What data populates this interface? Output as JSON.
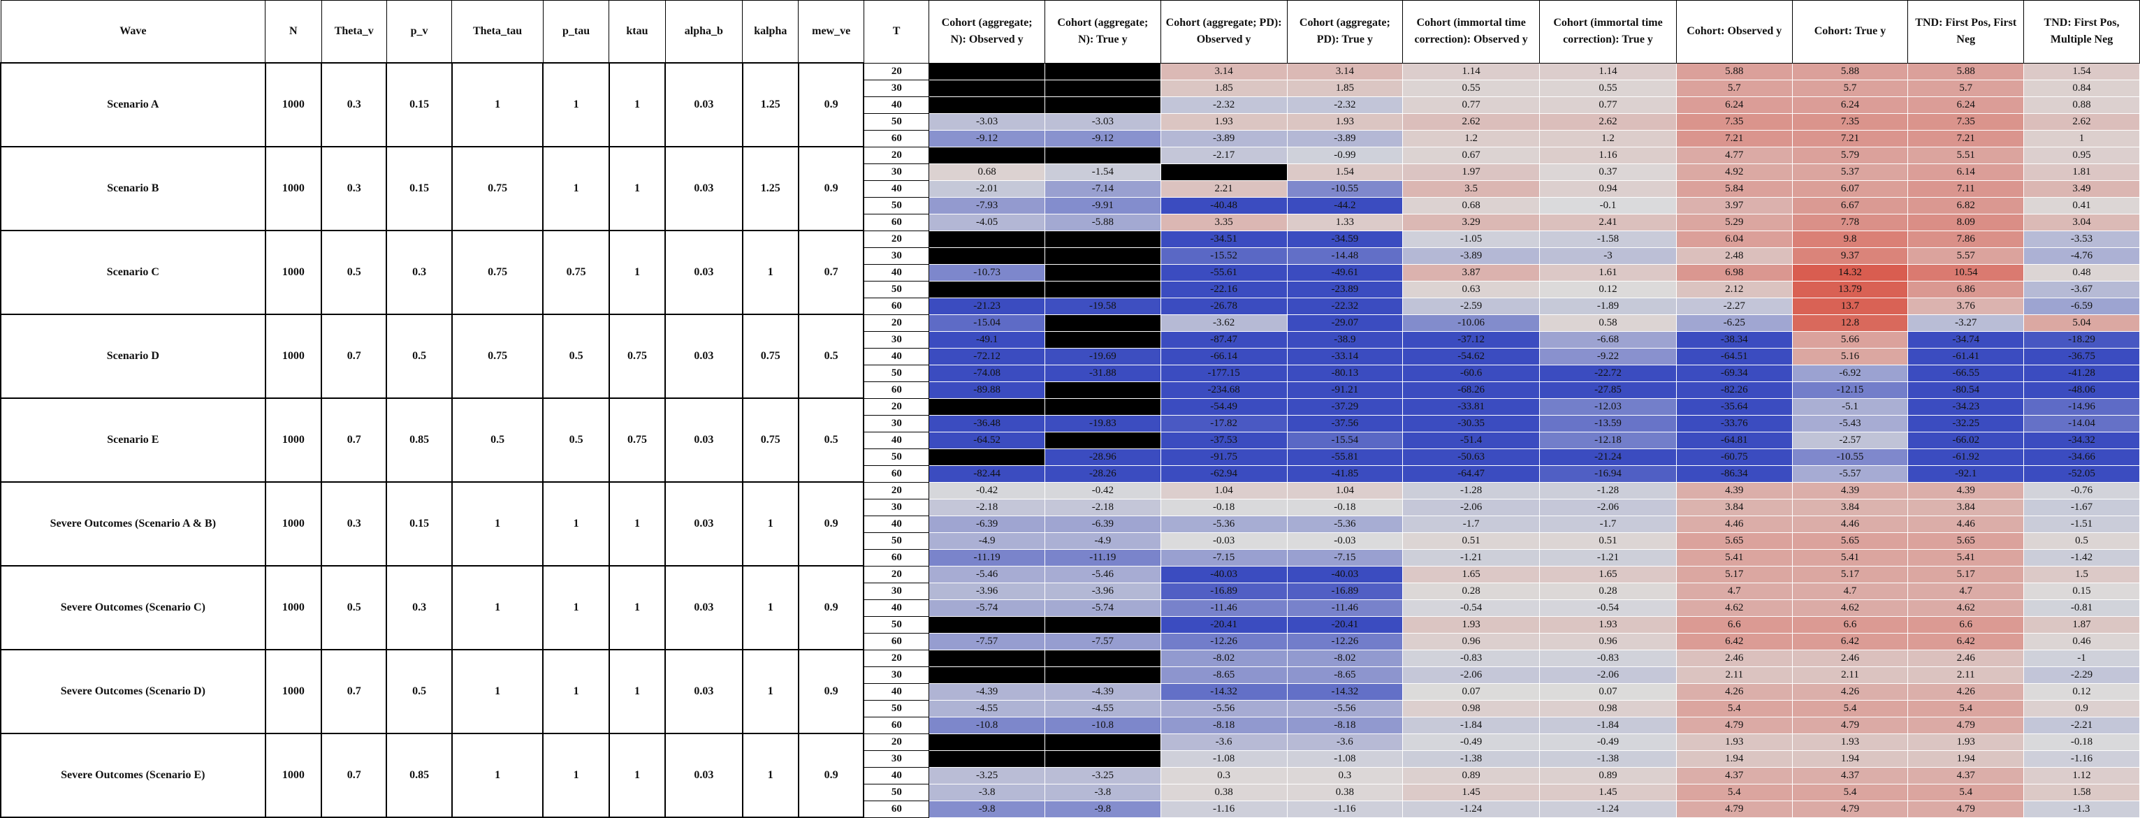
{
  "headers": [
    "Wave",
    "N",
    "Theta_v",
    "p_v",
    "Theta_tau",
    "p_tau",
    "ktau",
    "alpha_b",
    "kalpha",
    "mew_ve",
    "T",
    "Cohort (aggregate; N): Observed y",
    "Cohort (aggregate; N): True y",
    "Cohort (aggregate; PD): Observed y",
    "Cohort (aggregate; PD): True y",
    "Cohort (immortal time correction): Observed y",
    "Cohort (immortal time correction): True y",
    "Cohort: Observed y",
    "Cohort: True y",
    "TND: First Pos, First Neg",
    "TND: First Pos, Multiple Neg"
  ],
  "colors": {
    "cold": "#3b4cc0",
    "neutral": "#dcdcdc",
    "warm": "#d9584a",
    "missing": "#000000"
  },
  "groups": [
    {
      "wave": "Scenario A",
      "params": [
        "1000",
        "0.3",
        "0.15",
        "1",
        "1",
        "1",
        "0.03",
        "1.25",
        "0.9"
      ],
      "rows": [
        {
          "T": "20",
          "v": [
            null,
            null,
            "3.14",
            "3.14",
            "1.14",
            "1.14",
            "5.88",
            "5.88",
            "5.88",
            "1.54"
          ]
        },
        {
          "T": "30",
          "v": [
            null,
            null,
            "1.85",
            "1.85",
            "0.55",
            "0.55",
            "5.7",
            "5.7",
            "5.7",
            "0.84"
          ]
        },
        {
          "T": "40",
          "v": [
            null,
            null,
            "-2.32",
            "-2.32",
            "0.77",
            "0.77",
            "6.24",
            "6.24",
            "6.24",
            "0.88"
          ]
        },
        {
          "T": "50",
          "v": [
            "-3.03",
            "-3.03",
            "1.93",
            "1.93",
            "2.62",
            "2.62",
            "7.35",
            "7.35",
            "7.35",
            "2.62"
          ]
        },
        {
          "T": "60",
          "v": [
            "-9.12",
            "-9.12",
            "-3.89",
            "-3.89",
            "1.2",
            "1.2",
            "7.21",
            "7.21",
            "7.21",
            "1"
          ]
        }
      ]
    },
    {
      "wave": "Scenario B",
      "params": [
        "1000",
        "0.3",
        "0.15",
        "0.75",
        "1",
        "1",
        "0.03",
        "1.25",
        "0.9"
      ],
      "rows": [
        {
          "T": "20",
          "v": [
            null,
            null,
            "-2.17",
            "-0.99",
            "0.67",
            "1.16",
            "4.77",
            "5.79",
            "5.51",
            "0.95"
          ]
        },
        {
          "T": "30",
          "v": [
            "0.68",
            "-1.54",
            null,
            "1.54",
            "1.97",
            "0.37",
            "4.92",
            "5.37",
            "6.14",
            "1.81"
          ]
        },
        {
          "T": "40",
          "v": [
            "-2.01",
            "-7.14",
            "2.21",
            "-10.55",
            "3.5",
            "0.94",
            "5.84",
            "6.07",
            "7.11",
            "3.49"
          ]
        },
        {
          "T": "50",
          "v": [
            "-7.93",
            "-9.91",
            "-40.48",
            "-44.2",
            "0.68",
            "-0.1",
            "3.97",
            "6.67",
            "6.82",
            "0.41"
          ]
        },
        {
          "T": "60",
          "v": [
            "-4.05",
            "-5.88",
            "3.35",
            "1.33",
            "3.29",
            "2.41",
            "5.29",
            "7.78",
            "8.09",
            "3.04"
          ]
        }
      ]
    },
    {
      "wave": "Scenario C",
      "params": [
        "1000",
        "0.5",
        "0.3",
        "0.75",
        "0.75",
        "1",
        "0.03",
        "1",
        "0.7"
      ],
      "rows": [
        {
          "T": "20",
          "v": [
            null,
            null,
            "-34.51",
            "-34.59",
            "-1.05",
            "-1.58",
            "6.04",
            "9.8",
            "7.86",
            "-3.53"
          ]
        },
        {
          "T": "30",
          "v": [
            null,
            null,
            "-15.52",
            "-14.48",
            "-3.89",
            "-3",
            "2.48",
            "9.37",
            "5.57",
            "-4.76"
          ]
        },
        {
          "T": "40",
          "v": [
            "-10.73",
            null,
            "-55.61",
            "-49.61",
            "3.87",
            "1.61",
            "6.98",
            "14.32",
            "10.54",
            "0.48"
          ]
        },
        {
          "T": "50",
          "v": [
            null,
            null,
            "-22.16",
            "-23.89",
            "0.63",
            "0.12",
            "2.12",
            "13.79",
            "6.86",
            "-3.67"
          ]
        },
        {
          "T": "60",
          "v": [
            "-21.23",
            "-19.58",
            "-26.78",
            "-22.32",
            "-2.59",
            "-1.89",
            "-2.27",
            "13.7",
            "3.76",
            "-6.59"
          ]
        }
      ]
    },
    {
      "wave": "Scenario D",
      "params": [
        "1000",
        "0.7",
        "0.5",
        "0.75",
        "0.5",
        "0.75",
        "0.03",
        "0.75",
        "0.5"
      ],
      "rows": [
        {
          "T": "20",
          "v": [
            "-15.04",
            null,
            "-3.62",
            "-29.07",
            "-10.06",
            "0.58",
            "-6.25",
            "12.8",
            "-3.27",
            "5.04"
          ]
        },
        {
          "T": "30",
          "v": [
            "-49.1",
            null,
            "-87.47",
            "-38.9",
            "-37.12",
            "-6.68",
            "-38.34",
            "5.66",
            "-34.74",
            "-18.29"
          ]
        },
        {
          "T": "40",
          "v": [
            "-72.12",
            "-19.69",
            "-66.14",
            "-33.14",
            "-54.62",
            "-9.22",
            "-64.51",
            "5.16",
            "-61.41",
            "-36.75"
          ]
        },
        {
          "T": "50",
          "v": [
            "-74.08",
            "-31.88",
            "-177.15",
            "-80.13",
            "-60.6",
            "-22.72",
            "-69.34",
            "-6.92",
            "-66.55",
            "-41.28"
          ]
        },
        {
          "T": "60",
          "v": [
            "-89.88",
            null,
            "-234.68",
            "-91.21",
            "-68.26",
            "-27.85",
            "-82.26",
            "-12.15",
            "-80.54",
            "-48.06"
          ]
        }
      ]
    },
    {
      "wave": "Scenario E",
      "params": [
        "1000",
        "0.7",
        "0.85",
        "0.5",
        "0.5",
        "0.75",
        "0.03",
        "0.75",
        "0.5"
      ],
      "rows": [
        {
          "T": "20",
          "v": [
            null,
            null,
            "-54.49",
            "-37.29",
            "-33.81",
            "-12.03",
            "-35.64",
            "-5.1",
            "-34.23",
            "-14.96"
          ]
        },
        {
          "T": "30",
          "v": [
            "-36.48",
            "-19.83",
            "-17.82",
            "-37.56",
            "-30.35",
            "-13.59",
            "-33.76",
            "-5.43",
            "-32.25",
            "-14.04"
          ]
        },
        {
          "T": "40",
          "v": [
            "-64.52",
            null,
            "-37.53",
            "-15.54",
            "-51.4",
            "-12.18",
            "-64.81",
            "-2.57",
            "-66.02",
            "-34.32"
          ]
        },
        {
          "T": "50",
          "v": [
            null,
            "-28.96",
            "-91.75",
            "-55.81",
            "-50.63",
            "-21.24",
            "-60.75",
            "-10.55",
            "-61.92",
            "-34.66"
          ]
        },
        {
          "T": "60",
          "v": [
            "-82.44",
            "-28.26",
            "-62.94",
            "-41.85",
            "-64.47",
            "-16.94",
            "-86.34",
            "-5.57",
            "-92.1",
            "-52.05"
          ]
        }
      ]
    },
    {
      "wave": "Severe Outcomes (Scenario A & B)",
      "params": [
        "1000",
        "0.3",
        "0.15",
        "1",
        "1",
        "1",
        "0.03",
        "1",
        "0.9"
      ],
      "rows": [
        {
          "T": "20",
          "v": [
            "-0.42",
            "-0.42",
            "1.04",
            "1.04",
            "-1.28",
            "-1.28",
            "4.39",
            "4.39",
            "4.39",
            "-0.76"
          ]
        },
        {
          "T": "30",
          "v": [
            "-2.18",
            "-2.18",
            "-0.18",
            "-0.18",
            "-2.06",
            "-2.06",
            "3.84",
            "3.84",
            "3.84",
            "-1.67"
          ]
        },
        {
          "T": "40",
          "v": [
            "-6.39",
            "-6.39",
            "-5.36",
            "-5.36",
            "-1.7",
            "-1.7",
            "4.46",
            "4.46",
            "4.46",
            "-1.51"
          ]
        },
        {
          "T": "50",
          "v": [
            "-4.9",
            "-4.9",
            "-0.03",
            "-0.03",
            "0.51",
            "0.51",
            "5.65",
            "5.65",
            "5.65",
            "0.5"
          ]
        },
        {
          "T": "60",
          "v": [
            "-11.19",
            "-11.19",
            "-7.15",
            "-7.15",
            "-1.21",
            "-1.21",
            "5.41",
            "5.41",
            "5.41",
            "-1.42"
          ]
        }
      ]
    },
    {
      "wave": "Severe Outcomes (Scenario C)",
      "params": [
        "1000",
        "0.5",
        "0.3",
        "1",
        "1",
        "1",
        "0.03",
        "1",
        "0.9"
      ],
      "rows": [
        {
          "T": "20",
          "v": [
            "-5.46",
            "-5.46",
            "-40.03",
            "-40.03",
            "1.65",
            "1.65",
            "5.17",
            "5.17",
            "5.17",
            "1.5"
          ]
        },
        {
          "T": "30",
          "v": [
            "-3.96",
            "-3.96",
            "-16.89",
            "-16.89",
            "0.28",
            "0.28",
            "4.7",
            "4.7",
            "4.7",
            "0.15"
          ]
        },
        {
          "T": "40",
          "v": [
            "-5.74",
            "-5.74",
            "-11.46",
            "-11.46",
            "-0.54",
            "-0.54",
            "4.62",
            "4.62",
            "4.62",
            "-0.81"
          ]
        },
        {
          "T": "50",
          "v": [
            null,
            null,
            "-20.41",
            "-20.41",
            "1.93",
            "1.93",
            "6.6",
            "6.6",
            "6.6",
            "1.87"
          ]
        },
        {
          "T": "60",
          "v": [
            "-7.57",
            "-7.57",
            "-12.26",
            "-12.26",
            "0.96",
            "0.96",
            "6.42",
            "6.42",
            "6.42",
            "0.46"
          ]
        }
      ]
    },
    {
      "wave": "Severe Outcomes (Scenario D)",
      "params": [
        "1000",
        "0.7",
        "0.5",
        "1",
        "1",
        "1",
        "0.03",
        "1",
        "0.9"
      ],
      "rows": [
        {
          "T": "20",
          "v": [
            null,
            null,
            "-8.02",
            "-8.02",
            "-0.83",
            "-0.83",
            "2.46",
            "2.46",
            "2.46",
            "-1"
          ]
        },
        {
          "T": "30",
          "v": [
            null,
            null,
            "-8.65",
            "-8.65",
            "-2.06",
            "-2.06",
            "2.11",
            "2.11",
            "2.11",
            "-2.29"
          ]
        },
        {
          "T": "40",
          "v": [
            "-4.39",
            "-4.39",
            "-14.32",
            "-14.32",
            "0.07",
            "0.07",
            "4.26",
            "4.26",
            "4.26",
            "0.12"
          ]
        },
        {
          "T": "50",
          "v": [
            "-4.55",
            "-4.55",
            "-5.56",
            "-5.56",
            "0.98",
            "0.98",
            "5.4",
            "5.4",
            "5.4",
            "0.9"
          ]
        },
        {
          "T": "60",
          "v": [
            "-10.8",
            "-10.8",
            "-8.18",
            "-8.18",
            "-1.84",
            "-1.84",
            "4.79",
            "4.79",
            "4.79",
            "-2.21"
          ]
        }
      ]
    },
    {
      "wave": "Severe Outcomes (Scenario E)",
      "params": [
        "1000",
        "0.7",
        "0.85",
        "1",
        "1",
        "1",
        "0.03",
        "1",
        "0.9"
      ],
      "rows": [
        {
          "T": "20",
          "v": [
            null,
            null,
            "-3.6",
            "-3.6",
            "-0.49",
            "-0.49",
            "1.93",
            "1.93",
            "1.93",
            "-0.18"
          ]
        },
        {
          "T": "30",
          "v": [
            null,
            null,
            "-1.08",
            "-1.08",
            "-1.38",
            "-1.38",
            "1.94",
            "1.94",
            "1.94",
            "-1.16"
          ]
        },
        {
          "T": "40",
          "v": [
            "-3.25",
            "-3.25",
            "0.3",
            "0.3",
            "0.89",
            "0.89",
            "4.37",
            "4.37",
            "4.37",
            "1.12"
          ]
        },
        {
          "T": "50",
          "v": [
            "-3.8",
            "-3.8",
            "0.38",
            "0.38",
            "1.45",
            "1.45",
            "5.4",
            "5.4",
            "5.4",
            "1.58"
          ]
        },
        {
          "T": "60",
          "v": [
            "-9.8",
            "-9.8",
            "-1.16",
            "-1.16",
            "-1.24",
            "-1.24",
            "4.79",
            "4.79",
            "4.79",
            "-1.3"
          ]
        }
      ]
    }
  ]
}
